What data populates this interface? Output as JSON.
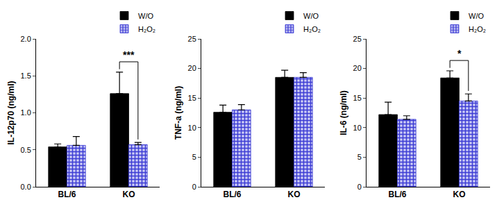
{
  "chart_data": [
    {
      "type": "bar",
      "y_label": "IL-12p70 (ng/ml)",
      "categories": [
        "BL/6",
        "KO"
      ],
      "series": [
        {
          "name": "W/O",
          "color": "#000000",
          "values": [
            0.54,
            1.26
          ],
          "errors": [
            0.04,
            0.29
          ]
        },
        {
          "name": "H₂O₂",
          "color": "#3b3bd4",
          "values": [
            0.56,
            0.57
          ],
          "errors": [
            0.12,
            0.03
          ]
        }
      ],
      "ylim": [
        0,
        2
      ],
      "yticks": [
        {
          "value": 0,
          "label": "0.0"
        },
        {
          "value": 0.5,
          "label": "0.5"
        },
        {
          "value": 1,
          "label": "1.0"
        },
        {
          "value": 1.5,
          "label": "1.5"
        },
        {
          "value": 2,
          "label": "2.0"
        }
      ],
      "annotations": [
        {
          "text": "***",
          "category": "KO"
        }
      ],
      "grid": false,
      "legend": "top right"
    },
    {
      "type": "bar",
      "y_label": "TNF-a (ng/ml)",
      "categories": [
        "BL/6",
        "KO"
      ],
      "series": [
        {
          "name": "W/O",
          "color": "#000000",
          "values": [
            12.6,
            18.5
          ],
          "errors": [
            1.2,
            1.2
          ]
        },
        {
          "name": "H₂O₂",
          "color": "#3b3bd4",
          "values": [
            13.0,
            18.5
          ],
          "errors": [
            0.9,
            0.8
          ]
        }
      ],
      "ylim": [
        0,
        25
      ],
      "yticks": [
        0,
        5,
        10,
        15,
        20,
        25
      ],
      "annotations": [],
      "grid": false,
      "legend": "top right"
    },
    {
      "type": "bar",
      "y_label": "IL-6 (ng/ml)",
      "categories": [
        "BL/6",
        "KO"
      ],
      "series": [
        {
          "name": "W/O",
          "color": "#000000",
          "values": [
            12.2,
            18.4
          ],
          "errors": [
            2.1,
            1.2
          ]
        },
        {
          "name": "H₂O₂",
          "color": "#3b3bd4",
          "values": [
            11.4,
            14.5
          ],
          "errors": [
            0.6,
            1.2
          ]
        }
      ],
      "ylim": [
        0,
        25
      ],
      "yticks": [
        0,
        5,
        10,
        15,
        20,
        25
      ],
      "annotations": [
        {
          "text": "*",
          "category": "KO"
        }
      ],
      "grid": false,
      "legend": "top right"
    }
  ]
}
